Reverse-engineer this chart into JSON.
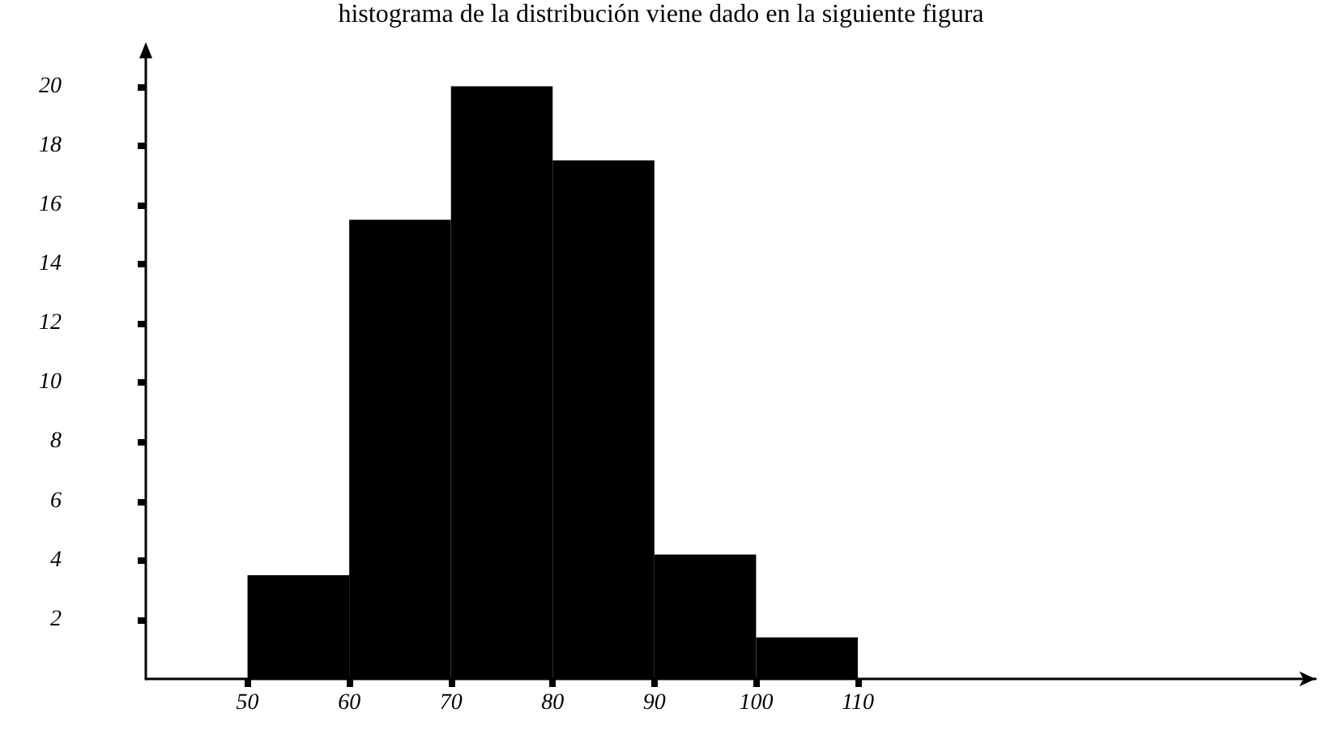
{
  "chart_data": {
    "type": "histogram",
    "title": "histograma de la distribución viene dado en la siguiente figura",
    "bins": [
      50,
      60,
      70,
      80,
      90,
      100,
      110
    ],
    "values": [
      3.5,
      15.5,
      20,
      17.5,
      4.2,
      1.4
    ],
    "color": "#000000",
    "xlim": [
      40,
      155
    ],
    "xticks": [
      50,
      60,
      70,
      80,
      90,
      100,
      110
    ],
    "ylim": [
      0,
      21
    ],
    "yticks": [
      2,
      4,
      6,
      8,
      10,
      12,
      14,
      16,
      18,
      20
    ],
    "grid": false
  }
}
